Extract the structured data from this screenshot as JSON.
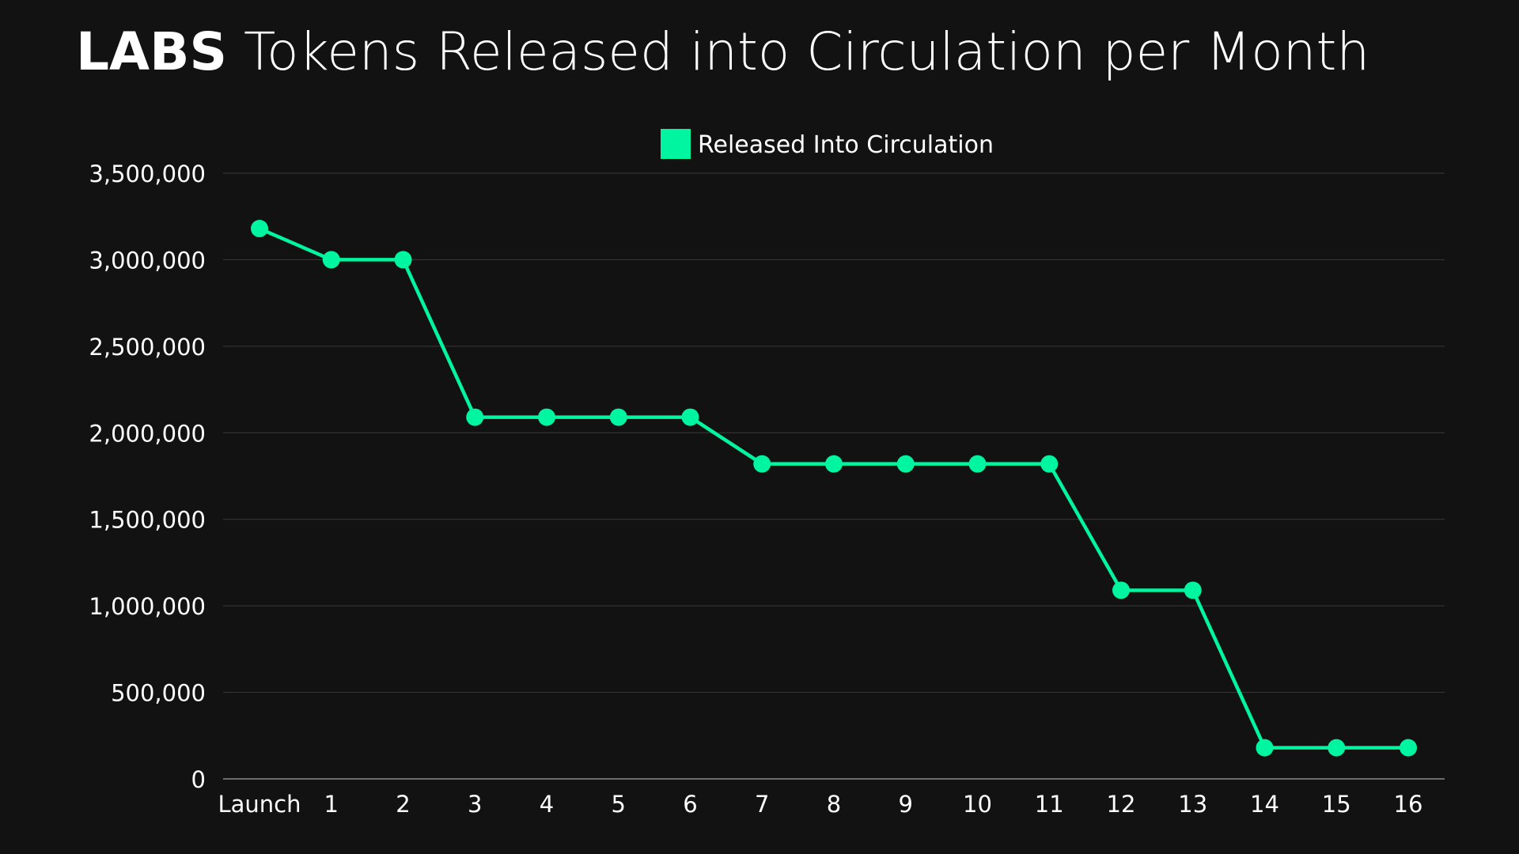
{
  "colors": {
    "background": "#121212",
    "line": "#00f5a0",
    "text": "#ffffff",
    "grid": "#3a3a3a",
    "axis": "#8a8a8a"
  },
  "chart_data": {
    "type": "line",
    "title_bold": "LABS",
    "title_rest": " Tokens Released into Circulation per Month",
    "xlabel": "",
    "ylabel": "",
    "grid": true,
    "legend_position": "top-center",
    "ylim": [
      0,
      3500000
    ],
    "yticks": [
      "0",
      "500,000",
      "1,000,000",
      "1,500,000",
      "2,000,000",
      "2,500,000",
      "3,000,000",
      "3,500,000"
    ],
    "categories": [
      "Launch",
      "1",
      "2",
      "3",
      "4",
      "5",
      "6",
      "7",
      "8",
      "9",
      "10",
      "11",
      "12",
      "13",
      "14",
      "15",
      "16"
    ],
    "series": [
      {
        "name": "Released Into Circulation",
        "values": [
          3180000,
          3000000,
          3000000,
          2090000,
          2090000,
          2090000,
          2090000,
          1820000,
          1820000,
          1820000,
          1820000,
          1820000,
          1090000,
          1090000,
          180000,
          180000,
          180000
        ]
      }
    ]
  }
}
